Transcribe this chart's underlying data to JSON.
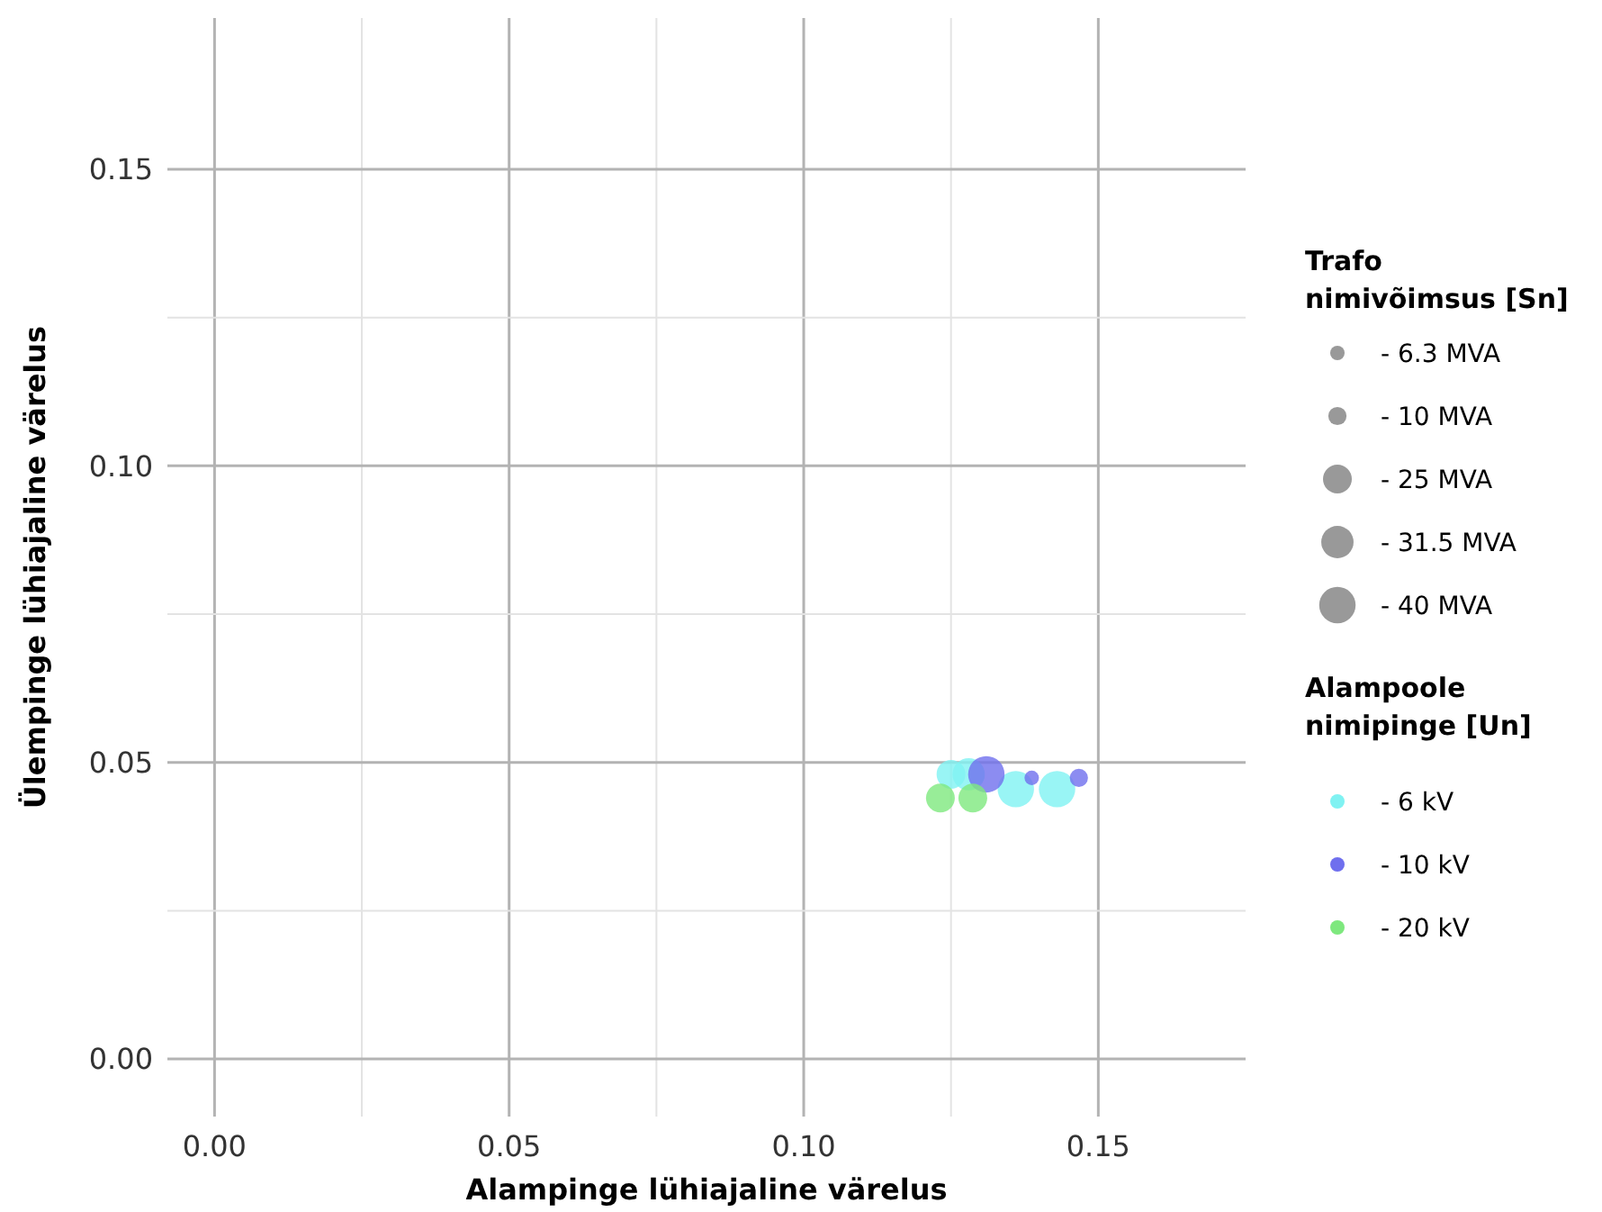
{
  "chart_data": {
    "type": "bubble",
    "xlabel": "Alampinge lühiajaline värelus",
    "ylabel": "Ülempinge lühiajaline värelus",
    "xlim": [
      -0.008,
      0.175
    ],
    "ylim": [
      -0.0097,
      0.1755
    ],
    "xticks": [
      {
        "value": 0,
        "label": "0.00"
      },
      {
        "value": 0.025,
        "label": null
      },
      {
        "value": 0.05,
        "label": "0.05"
      },
      {
        "value": 0.075,
        "label": null
      },
      {
        "value": 0.1,
        "label": "0.10"
      },
      {
        "value": 0.125,
        "label": null
      },
      {
        "value": 0.15,
        "label": "0.15"
      }
    ],
    "yticks": [
      {
        "value": 0,
        "label": "0.00"
      },
      {
        "value": 0.025,
        "label": null
      },
      {
        "value": 0.05,
        "label": "0.05"
      },
      {
        "value": 0.075,
        "label": null
      },
      {
        "value": 0.1,
        "label": "0.10"
      },
      {
        "value": 0.125,
        "label": null
      },
      {
        "value": 0.15,
        "label": "0.15"
      }
    ],
    "grid": true,
    "legend": "right",
    "legend_title": "Alampoole nimipinge [Un]",
    "annotations": [
      "Trafo nimivõimsus [Sn]"
    ],
    "size_legend": [
      {
        "value": 6.3,
        "label": "-  6.3 MVA"
      },
      {
        "value": 10,
        "label": "- 10 MVA"
      },
      {
        "value": 25,
        "label": "- 25 MVA"
      },
      {
        "value": 31.5,
        "label": "- 31.5 MVA"
      },
      {
        "value": 40,
        "label": "- 40 MVA"
      }
    ],
    "series": [
      {
        "name": "-  6 kV",
        "color": "#80f2f2",
        "x": [
          0.125,
          0.128,
          0.136,
          0.143
        ],
        "values": [
          0.048,
          0.048,
          0.0455,
          0.0455
        ],
        "sizes": [
          25,
          31.5,
          40,
          40
        ]
      },
      {
        "name": "- 10 kV",
        "color": "#6f6fee",
        "x": [
          0.131,
          0.1387,
          0.1467
        ],
        "values": [
          0.048,
          0.0474,
          0.0474
        ],
        "sizes": [
          40,
          6.3,
          10
        ]
      },
      {
        "name": "- 20 kV",
        "color": "#7ee87e",
        "x": [
          0.1232,
          0.1287
        ],
        "values": [
          0.044,
          0.044
        ],
        "sizes": [
          25,
          25
        ]
      }
    ]
  }
}
